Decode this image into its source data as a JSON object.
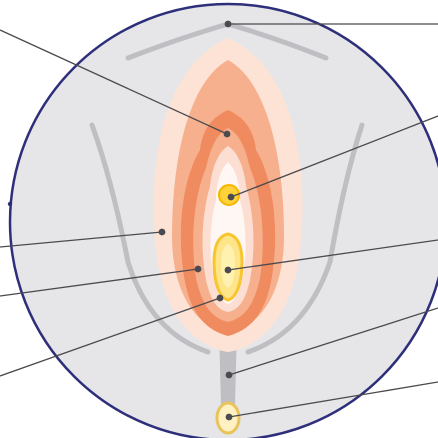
{
  "diagram": {
    "colors": {
      "circle_fill": "#e6e6e9",
      "circle_stroke": "#2e2f7a",
      "crease": "#bfbfc3",
      "outer_region": "#fde3d6",
      "mid_region": "#f6b08e",
      "inner_region": "#f08a5f",
      "innermost_region": "#fcded2",
      "vestibule": "#fff7f3",
      "point_fill": "#ffd23a",
      "point_ring": "#f7b500",
      "lower_point_fill": "#fff1c2",
      "lower_point_ring": "#e9c35e",
      "leader_line": "#4a4a4f",
      "leader_dot": "#4a4a4f"
    },
    "leader_count": 9
  }
}
